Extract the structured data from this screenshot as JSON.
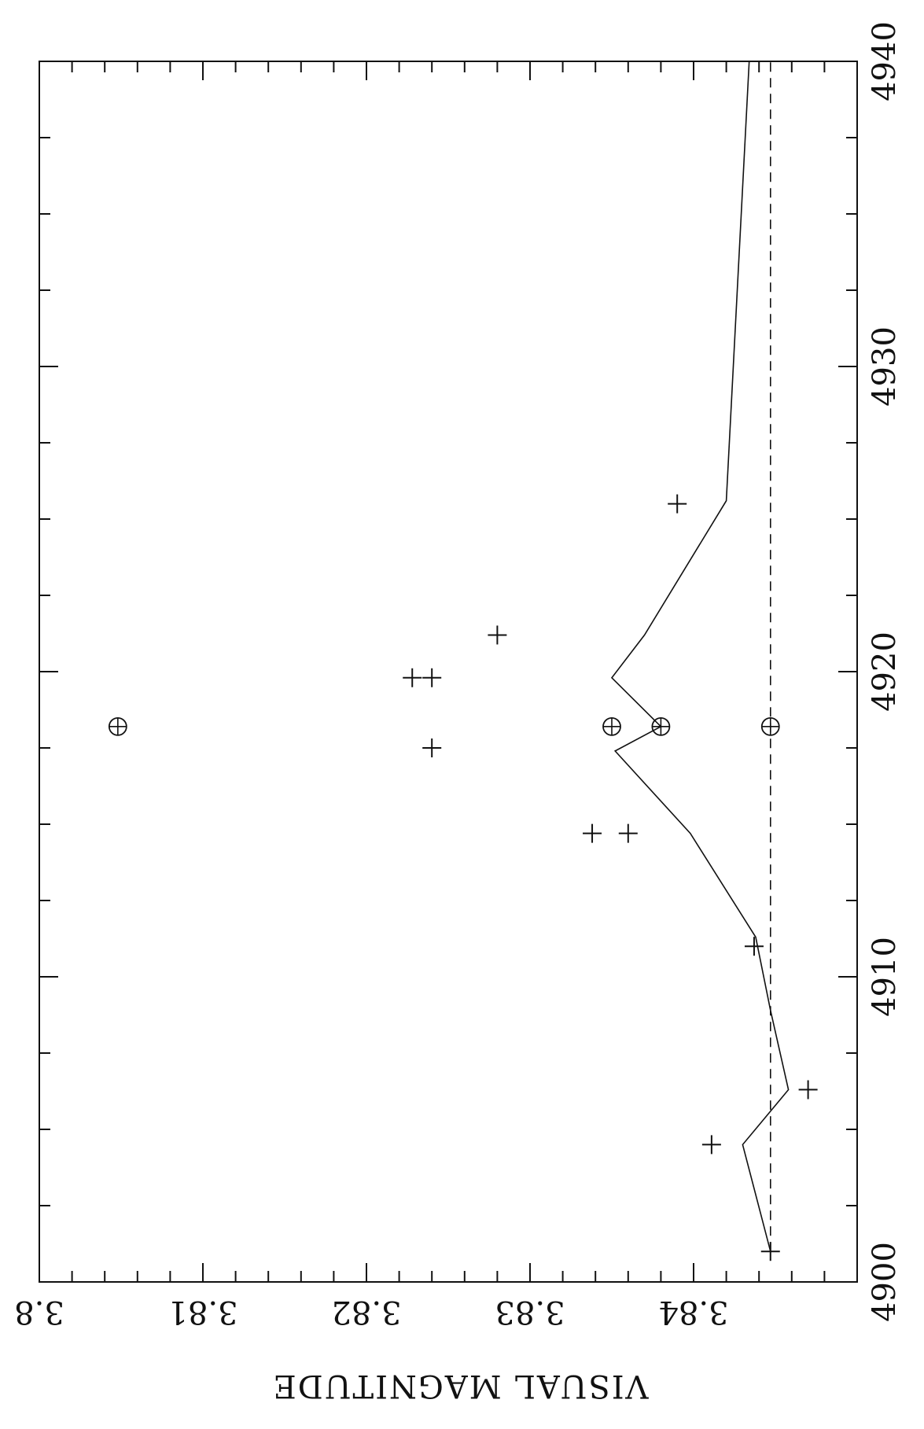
{
  "chart_data": {
    "type": "scatter",
    "orientation": "rotated-90-clockwise",
    "xlabel": "",
    "ylabel": "VISUAL MAGNITUDE",
    "xlim": [
      4900,
      4940
    ],
    "ylim": [
      3.8,
      3.85
    ],
    "x_ticks": [
      "4900",
      "4910",
      "4920",
      "4930",
      "4940"
    ],
    "y_ticks": [
      "3.8",
      "3.81",
      "3.82",
      "3.83",
      "3.84"
    ],
    "grid": false,
    "colors": {
      "ink": "#111111",
      "background": "#ffffff"
    },
    "series": [
      {
        "marker": "plus",
        "points": [
          [
            4901.0,
            3.8447
          ],
          [
            4904.5,
            3.8411
          ],
          [
            4906.3,
            3.847
          ],
          [
            4911.0,
            3.8437
          ],
          [
            4914.7,
            3.8338
          ],
          [
            4914.7,
            3.836
          ],
          [
            4917.5,
            3.824
          ],
          [
            4919.8,
            3.8228
          ],
          [
            4919.8,
            3.824
          ],
          [
            4921.2,
            3.828
          ],
          [
            4925.5,
            3.839
          ]
        ]
      },
      {
        "marker": "circle-plus",
        "points": [
          [
            4918.2,
            3.8048
          ],
          [
            4918.2,
            3.835
          ],
          [
            4918.2,
            3.838
          ],
          [
            4918.2,
            3.8447
          ]
        ]
      },
      {
        "line": "solid",
        "points": [
          [
            4901.0,
            3.8447
          ],
          [
            4904.5,
            3.843
          ],
          [
            4906.3,
            3.8458
          ],
          [
            4908.9,
            3.8447
          ],
          [
            4911.3,
            3.8438
          ],
          [
            4914.7,
            3.8398
          ],
          [
            4917.4,
            3.8352
          ],
          [
            4918.2,
            3.838
          ],
          [
            4919.8,
            3.835
          ],
          [
            4921.2,
            3.837
          ],
          [
            4925.6,
            3.842
          ],
          [
            4940.0,
            3.8434
          ]
        ]
      },
      {
        "line": "dashed",
        "points": [
          [
            4901.0,
            3.8447
          ],
          [
            4940.0,
            3.8447
          ]
        ]
      }
    ]
  }
}
